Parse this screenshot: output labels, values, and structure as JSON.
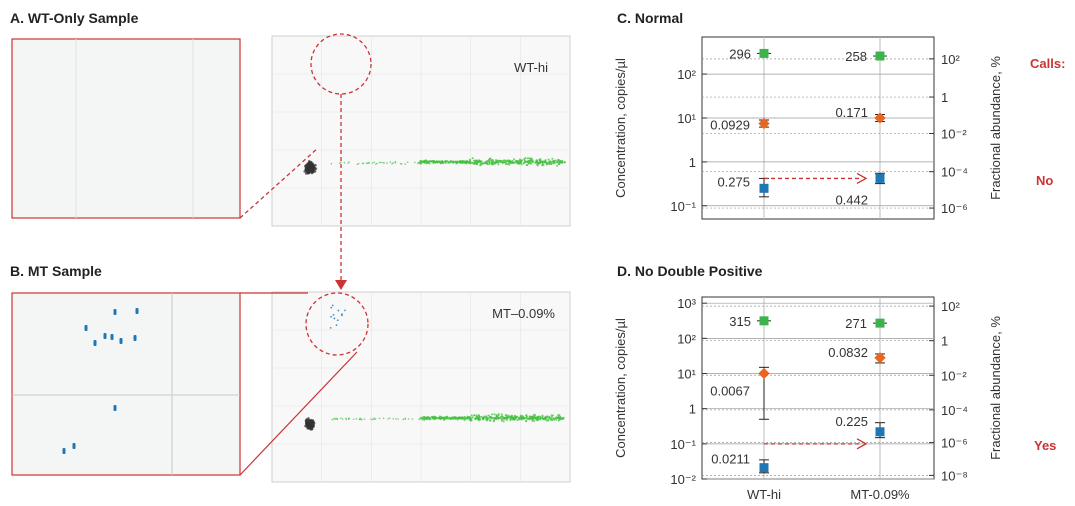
{
  "colors": {
    "red": "#cc3333",
    "green": "#3cb44b",
    "orange": "#e8661f",
    "blue": "#1f77b4",
    "scatter_green": "#44c040",
    "scatter_gray": "#333333",
    "call_red": "#cc3333"
  },
  "panels": {
    "a": {
      "title": "A. WT-Only Sample",
      "label": "WT-hi"
    },
    "b": {
      "title": "B. MT Sample",
      "label": "MT–0.09%"
    },
    "c": {
      "title": "C. Normal"
    },
    "d": {
      "title": "D. No Double Positive"
    }
  },
  "calls": {
    "header": "Calls:",
    "c": "No",
    "d": "Yes"
  },
  "chart_data": [
    {
      "panel": "C",
      "type": "scatter",
      "title": "C. Normal",
      "ylabel": "Concentration, copies/µl",
      "y2label": "Fractional abundance, %",
      "yscale": "log",
      "ylim": [
        0.05,
        700
      ],
      "yticks": [
        "10⁻¹",
        "1",
        "10¹",
        "10²"
      ],
      "y2ticks": [
        "10⁻⁶",
        "10⁻⁴",
        "10⁻²",
        "1",
        "10²"
      ],
      "categories": [
        "WT-hi",
        "MT-0.09%"
      ],
      "series": [
        {
          "values": [
            296,
            258
          ],
          "labels": [
            "296",
            "258"
          ],
          "color": "green"
        },
        {
          "values": [
            7.5,
            10
          ],
          "labels": [
            "0.0929",
            "0.171"
          ],
          "color": "orange",
          "error_low": [
            6.2,
            8.3
          ],
          "error_high": [
            9.0,
            12.0
          ]
        },
        {
          "values": [
            0.25,
            0.42
          ],
          "labels": [
            "0.275",
            "0.442"
          ],
          "color": "blue",
          "error_low": [
            0.16,
            0.32
          ],
          "error_high": [
            0.42,
            0.55
          ]
        }
      ],
      "call": "No"
    },
    {
      "panel": "D",
      "type": "scatter",
      "title": "D. No Double Positive",
      "ylabel": "Concentration, copies/µl",
      "y2label": "Fractional abundance, %",
      "yscale": "log",
      "ylim": [
        0.01,
        1500
      ],
      "yticks": [
        "10⁻²",
        "10⁻¹",
        "1",
        "10¹",
        "10²",
        "10³"
      ],
      "y2ticks": [
        "10⁻⁸",
        "10⁻⁶",
        "10⁻⁴",
        "10⁻²",
        "1",
        "10²"
      ],
      "categories": [
        "WT-hi",
        "MT-0.09%"
      ],
      "series": [
        {
          "values": [
            315,
            271
          ],
          "labels": [
            "315",
            "271"
          ],
          "color": "green"
        },
        {
          "values": [
            10,
            28
          ],
          "labels": [
            "0.0067",
            "0.0832"
          ],
          "color": "orange",
          "error_low": [
            0.5,
            20
          ],
          "error_high": [
            15,
            36
          ]
        },
        {
          "values": [
            0.021,
            0.22
          ],
          "labels": [
            "0.0211",
            "0.225"
          ],
          "color": "blue",
          "error_low": [
            0.015,
            0.15
          ],
          "error_high": [
            0.035,
            0.4
          ]
        }
      ],
      "call": "Yes"
    }
  ]
}
